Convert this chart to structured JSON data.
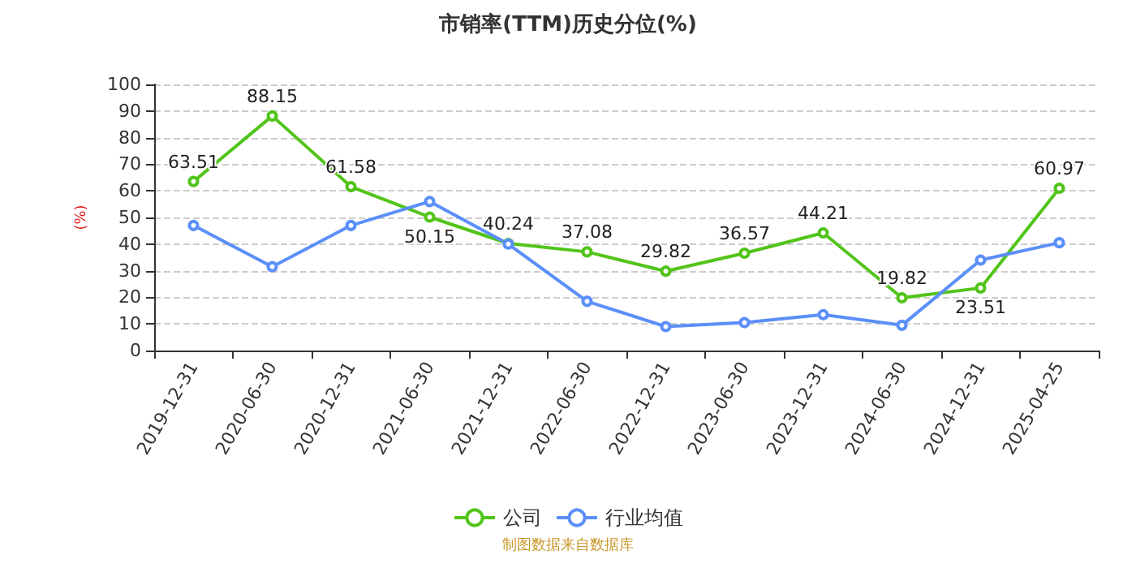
{
  "chart_data": {
    "type": "line",
    "title": "市销率(TTM)历史分位(%)",
    "ylabel": "(%)",
    "categories": [
      "2019-12-31",
      "2020-06-30",
      "2020-12-31",
      "2021-06-30",
      "2021-12-31",
      "2022-06-30",
      "2022-12-31",
      "2023-06-30",
      "2023-12-31",
      "2024-06-30",
      "2024-12-31",
      "2025-04-25"
    ],
    "series": [
      {
        "name": "公司",
        "color": "#52c41a",
        "values": [
          63.51,
          88.15,
          61.58,
          50.15,
          40.24,
          37.08,
          29.82,
          36.57,
          44.21,
          19.82,
          23.51,
          60.97
        ],
        "value_labels": [
          "63.51",
          "88.15",
          "61.58",
          "50.15",
          "40.24",
          "37.08",
          "29.82",
          "36.57",
          "44.21",
          "19.82",
          "23.51",
          "60.97"
        ]
      },
      {
        "name": "行业均值",
        "color": "#5b8ff9",
        "values": [
          47,
          31.5,
          47,
          56,
          40,
          18.5,
          9,
          10.5,
          13.5,
          9.5,
          34,
          40.5
        ]
      }
    ],
    "ylim": [
      0,
      100
    ],
    "yticks": [
      0,
      10,
      20,
      30,
      40,
      50,
      60,
      70,
      80,
      90,
      100
    ],
    "grid": "y",
    "legend": "bottom",
    "marker": "circle",
    "annotations": [
      "制图数据来自数据库"
    ]
  }
}
